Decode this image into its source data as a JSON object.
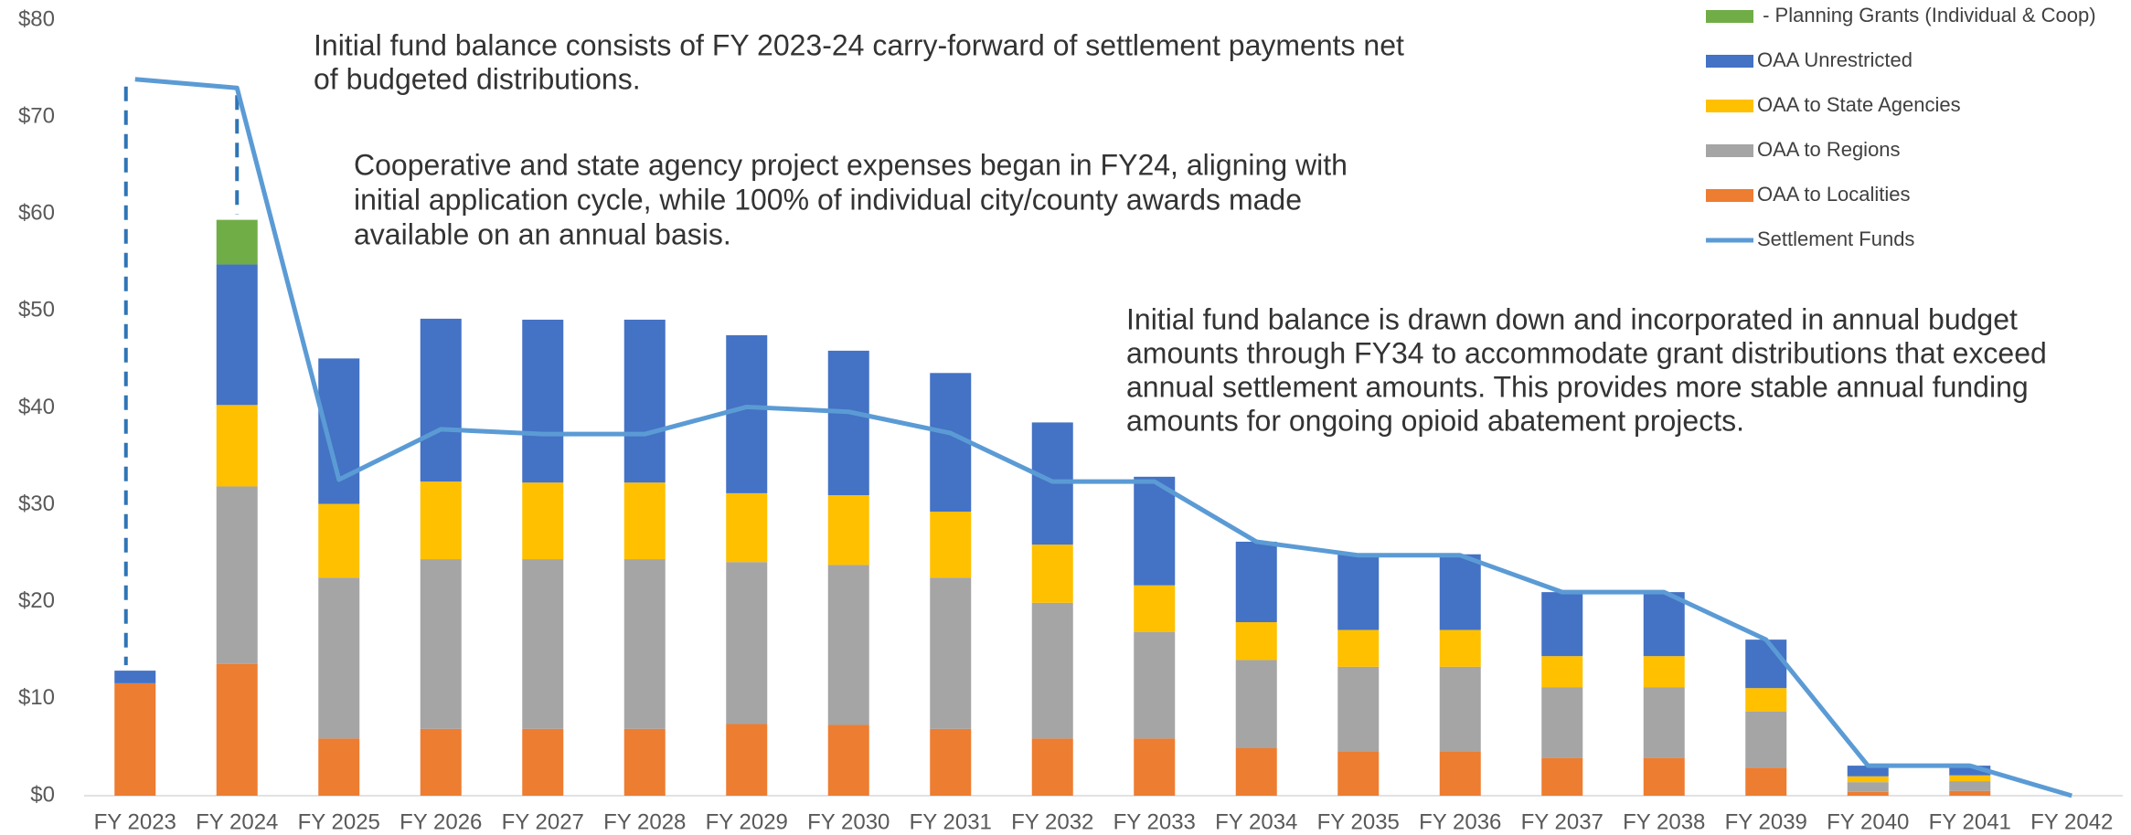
{
  "chart_data": {
    "type": "stacked-bar-line",
    "categories": [
      "FY 2023",
      "FY 2024",
      "FY 2025",
      "FY 2026",
      "FY 2027",
      "FY 2028",
      "FY 2029",
      "FY 2030",
      "FY 2031",
      "FY 2032",
      "FY 2033",
      "FY 2034",
      "FY 2035",
      "FY 2036",
      "FY 2037",
      "FY 2038",
      "FY 2039",
      "FY 2040",
      "FY 2041",
      "FY 2042"
    ],
    "series": [
      {
        "name": "OAA to Localities",
        "color": "#ED7D31",
        "values": [
          11.6,
          13.6,
          5.9,
          6.9,
          6.9,
          6.9,
          7.4,
          7.3,
          6.9,
          5.9,
          5.9,
          4.9,
          4.6,
          4.6,
          3.9,
          3.9,
          2.9,
          0.4,
          0.5,
          0
        ]
      },
      {
        "name": "OAA to Regions",
        "color": "#A5A5A5",
        "values": [
          0,
          18.3,
          16.6,
          17.5,
          17.5,
          17.5,
          16.7,
          16.5,
          15.6,
          14.0,
          11.0,
          9.1,
          8.7,
          8.7,
          7.3,
          7.3,
          5.8,
          1.0,
          1.0,
          0
        ]
      },
      {
        "name": "OAA to State Agencies",
        "color": "#FFC000",
        "values": [
          0,
          8.4,
          7.6,
          8.0,
          7.9,
          7.9,
          7.1,
          7.2,
          6.8,
          6.0,
          4.8,
          3.9,
          3.8,
          3.8,
          3.2,
          3.2,
          2.4,
          0.6,
          0.6,
          0
        ]
      },
      {
        "name": "OAA Unrestricted",
        "color": "#4472C4",
        "values": [
          1.3,
          14.5,
          15.0,
          16.8,
          16.8,
          16.8,
          16.3,
          14.9,
          14.3,
          12.6,
          11.2,
          8.3,
          7.8,
          7.8,
          6.6,
          6.6,
          5.0,
          1.1,
          1.0,
          0
        ]
      },
      {
        "name": " - Planning Grants (Individual & Coop)",
        "color": "#70AD47",
        "values": [
          0,
          4.6,
          0,
          0,
          0,
          0,
          0,
          0,
          0,
          0,
          0,
          0,
          0,
          0,
          0,
          0,
          0,
          0,
          0,
          0
        ]
      },
      {
        "name": "Settlement Funds",
        "color": "#5B9BD5",
        "type": "line",
        "values": [
          73.9,
          73.0,
          32.6,
          37.8,
          37.3,
          37.3,
          40.1,
          39.6,
          37.4,
          32.4,
          32.4,
          26.2,
          24.8,
          24.8,
          21.0,
          21.0,
          16.1,
          3.1,
          3.1,
          0
        ]
      }
    ],
    "ylim": [
      0,
      80
    ],
    "yticks": [
      {
        "value": 0,
        "label": "$0"
      },
      {
        "value": 10,
        "label": "$10"
      },
      {
        "value": 20,
        "label": "$20"
      },
      {
        "value": 30,
        "label": "$30"
      },
      {
        "value": 40,
        "label": "$40"
      },
      {
        "value": 50,
        "label": "$50"
      },
      {
        "value": 60,
        "label": "$60"
      },
      {
        "value": 70,
        "label": "$70"
      },
      {
        "value": 80,
        "label": "$80"
      }
    ],
    "legend": "top-right",
    "annotations": [
      [
        "Initial fund balance consists of FY 2023-24 carry-forward of settlement payments net",
        "of budgeted distributions."
      ],
      [
        "Cooperative and state agency project expenses began in FY24, aligning with",
        "initial application cycle, while 100% of individual city/county awards made",
        "available on an annual basis."
      ],
      [
        "Initial fund balance is drawn down and incorporated in annual budget",
        "amounts through FY34 to accommodate grant distributions that exceed",
        "annual settlement amounts. This provides more stable annual funding",
        "amounts for ongoing opioid abatement projects."
      ]
    ]
  }
}
